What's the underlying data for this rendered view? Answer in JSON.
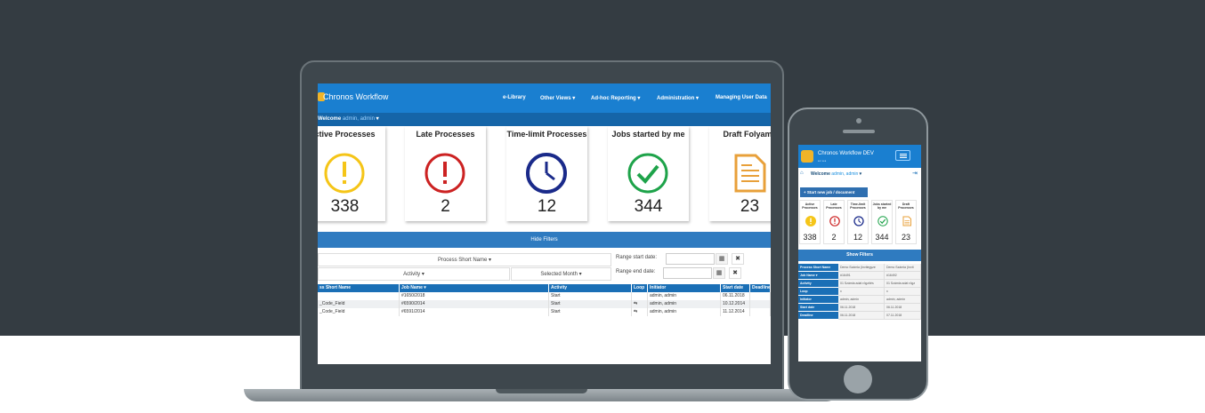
{
  "laptop": {
    "nav": {
      "brand": "Chronos Workflow",
      "menu": [
        "e-Library",
        "Other Views ▾",
        "Ad-hoc Reporting ▾",
        "Administration ▾",
        "Managing User Data"
      ]
    },
    "welcome": {
      "label": "Welcome",
      "user": "admin, admin",
      "flag": "▾"
    },
    "cards": [
      {
        "title": "ctive Processes",
        "value": "338",
        "icon": "warning-icon",
        "color": "#f5c518"
      },
      {
        "title": "Late Processes",
        "value": "2",
        "icon": "alert-icon",
        "color": "#cc2222"
      },
      {
        "title": "Time-limit Processes",
        "value": "12",
        "icon": "clock-icon",
        "color": "#1a2a8a"
      },
      {
        "title": "Jobs started by me",
        "value": "344",
        "icon": "check-icon",
        "color": "#1ea34a"
      },
      {
        "title": "Draft Folyama",
        "value": "23",
        "icon": "document-icon",
        "color": "#e8a03a"
      }
    ],
    "filters": {
      "hide_label": "Hide Filters",
      "process_short_name": "Process Short Name ▾",
      "activity": "Activity ▾",
      "selected_month": "Selected Month ▾",
      "range_start": "Range start date:",
      "range_end": "Range end date:",
      "calendar_icon": "▦",
      "clear_icon": "✖"
    },
    "table": {
      "headers": [
        "ss Short Name",
        "Job Name ▾",
        "Activity",
        "Loop",
        "Initiator",
        "Start date",
        "Deadline"
      ],
      "rows": [
        [
          "",
          "#1650/2018",
          "Start",
          "",
          "admin, admin",
          "06.11.2018",
          ""
        ],
        [
          "_Code_Field",
          "#6590/2014",
          "Start",
          "⇆",
          "admin, admin",
          "10.12.2014",
          ""
        ],
        [
          "_Code_Field",
          "#6591/2014",
          "Start",
          "⇆",
          "admin, admin",
          "11.12.2014",
          ""
        ]
      ]
    }
  },
  "phone": {
    "nav": {
      "brand": "Chronos Workflow DEV",
      "sub": "a n a a"
    },
    "welcome": {
      "label": "Welcome",
      "user": "admin, admin",
      "flag": "▾",
      "home_icon": "⌂",
      "logout_icon": "⇥"
    },
    "start_button": "+ Start new job / document",
    "cards": [
      {
        "title": "Active Processes",
        "value": "338",
        "icon": "warning-icon",
        "color": "#f5c518"
      },
      {
        "title": "Late Processes",
        "value": "2",
        "icon": "alert-icon",
        "color": "#cc2222"
      },
      {
        "title": "Time-limit Processes",
        "value": "12",
        "icon": "clock-icon",
        "color": "#1a2a8a"
      },
      {
        "title": "Jobs started by me",
        "value": "344",
        "icon": "check-icon",
        "color": "#1ea34a"
      },
      {
        "title": "Draft Processes",
        "value": "23",
        "icon": "document-icon",
        "color": "#e8a03a"
      }
    ],
    "show_filters": "Show Filters",
    "table": {
      "rows": [
        {
          "label": "Process Short Name",
          "values": [
            "Demo Számla (Invitegyze",
            "Demo Számla (Invit"
          ]
        },
        {
          "label": "Job Name ▾",
          "values": [
            "#16491",
            "#16492"
          ]
        },
        {
          "label": "Activity",
          "values": [
            "01 Számla adat rögzítés",
            "01 Számla adat rögz"
          ]
        },
        {
          "label": "Loop",
          "values": [
            "x",
            "x"
          ]
        },
        {
          "label": "Initiator",
          "values": [
            "admin, admin",
            "admin, admin"
          ]
        },
        {
          "label": "Start date",
          "values": [
            "06.11.2018",
            "06.11.2018"
          ]
        },
        {
          "label": "Deadline",
          "values": [
            "06.11.2018",
            "07.11.2018"
          ]
        }
      ]
    }
  }
}
